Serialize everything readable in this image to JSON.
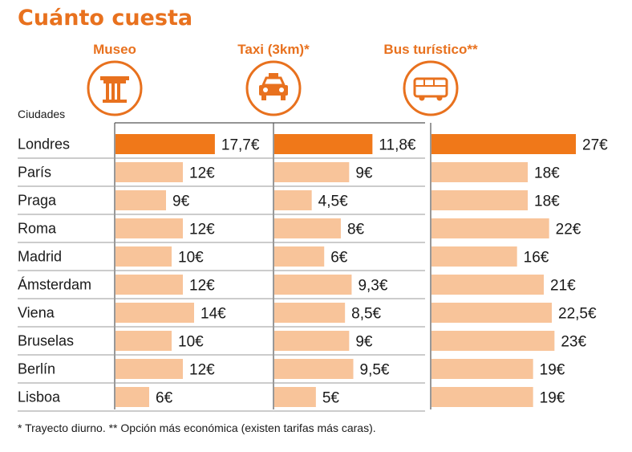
{
  "chart_data": {
    "type": "bar",
    "title": "Cuánto cuesta",
    "row_header": "Ciudades",
    "categories": [
      "Londres",
      "París",
      "Praga",
      "Roma",
      "Madrid",
      "Ámsterdam",
      "Viena",
      "Bruselas",
      "Berlín",
      "Lisboa"
    ],
    "series": [
      {
        "name": "Museo",
        "icon": "column-icon",
        "values": [
          17.7,
          12,
          9,
          12,
          10,
          12,
          14,
          10,
          12,
          6
        ],
        "labels": [
          "17,7€",
          "12€",
          "9€",
          "12€",
          "10€",
          "12€",
          "14€",
          "10€",
          "12€",
          "6€"
        ],
        "scale_max": 20
      },
      {
        "name": "Taxi (3km)*",
        "icon": "taxi-icon",
        "values": [
          11.8,
          9,
          4.5,
          8,
          6,
          9.3,
          8.5,
          9,
          9.5,
          5
        ],
        "labels": [
          "11,8€",
          "9€",
          "4,5€",
          "8€",
          "6€",
          "9,3€",
          "8,5€",
          "9€",
          "9,5€",
          "5€"
        ],
        "scale_max": 13.5
      },
      {
        "name": "Bus turístico**",
        "icon": "bus-icon",
        "values": [
          27,
          18,
          18,
          22,
          16,
          21,
          22.5,
          23,
          19,
          19
        ],
        "labels": [
          "27€",
          "18€",
          "18€",
          "22€",
          "16€",
          "21€",
          "22,5€",
          "23€",
          "19€",
          "19€"
        ],
        "scale_max": 30
      }
    ],
    "highlight_category": "Londres",
    "colors": {
      "accent": "#e8711e",
      "highlight": "#f07819",
      "bar": "#f8c49a",
      "grid": "#555555"
    },
    "footnote": "* Trayecto diurno. ** Opción más económica (existen tarifas más caras)."
  }
}
